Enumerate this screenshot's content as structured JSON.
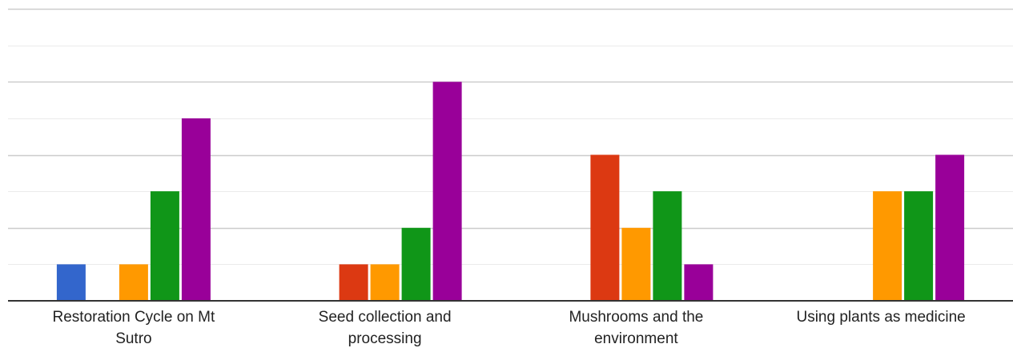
{
  "chart_data": {
    "type": "bar",
    "categories": [
      [
        "Restoration Cycle on Mt",
        "Sutro"
      ],
      [
        "Seed collection and",
        "processing"
      ],
      [
        "Mushrooms and the",
        "environment"
      ],
      [
        "Using plants as medicine"
      ]
    ],
    "series": [
      {
        "color": "#3366cc",
        "values": [
          1,
          0,
          0,
          0
        ]
      },
      {
        "color": "#dc3912",
        "values": [
          0,
          1,
          4,
          0
        ]
      },
      {
        "color": "#ff9900",
        "values": [
          1,
          1,
          2,
          3
        ]
      },
      {
        "color": "#109618",
        "values": [
          3,
          2,
          3,
          3
        ]
      },
      {
        "color": "#990099",
        "values": [
          5,
          6,
          1,
          4
        ]
      }
    ],
    "ylim": [
      0,
      8
    ],
    "y_gridline_step": 1,
    "grid": true,
    "legend": "none",
    "colors": {
      "major_grid": "#cccccc",
      "minor_grid": "#ebebeb",
      "baseline": "#333333",
      "label_text": "#222222"
    }
  }
}
